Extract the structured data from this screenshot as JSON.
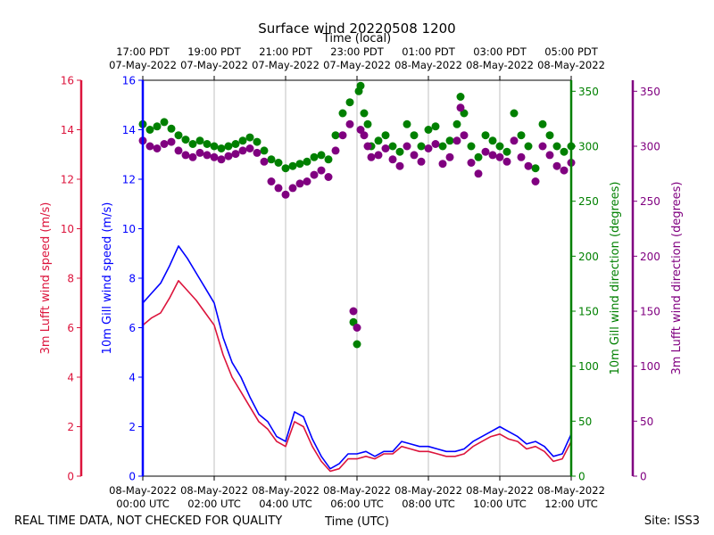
{
  "chart_data": {
    "type": "line",
    "title": "Surface wind 20220508 1200",
    "xlabel": "Time (UTC)",
    "xlabel_top": "Time (local)",
    "footer_left": "REAL TIME DATA, NOT CHECKED FOR QUALITY",
    "footer_right": "Site: ISS3",
    "x_range_hours": [
      0,
      12
    ],
    "x_ticks_bottom": [
      {
        "h": 0,
        "line1": "08-May-2022",
        "line2": "00:00 UTC"
      },
      {
        "h": 2,
        "line1": "08-May-2022",
        "line2": "02:00 UTC"
      },
      {
        "h": 4,
        "line1": "08-May-2022",
        "line2": "04:00 UTC"
      },
      {
        "h": 6,
        "line1": "08-May-2022",
        "line2": "06:00 UTC"
      },
      {
        "h": 8,
        "line1": "08-May-2022",
        "line2": "08:00 UTC"
      },
      {
        "h": 10,
        "line1": "08-May-2022",
        "line2": "10:00 UTC"
      },
      {
        "h": 12,
        "line1": "08-May-2022",
        "line2": "12:00 UTC"
      }
    ],
    "x_ticks_top": [
      {
        "h": 0,
        "line1": "17:00 PDT",
        "line2": "07-May-2022"
      },
      {
        "h": 2,
        "line1": "19:00 PDT",
        "line2": "07-May-2022"
      },
      {
        "h": 4,
        "line1": "21:00 PDT",
        "line2": "07-May-2022"
      },
      {
        "h": 6,
        "line1": "23:00 PDT",
        "line2": "07-May-2022"
      },
      {
        "h": 8,
        "line1": "01:00 PDT",
        "line2": "08-May-2022"
      },
      {
        "h": 10,
        "line1": "03:00 PDT",
        "line2": "08-May-2022"
      },
      {
        "h": 12,
        "line1": "05:00 PDT",
        "line2": "08-May-2022"
      }
    ],
    "axes": {
      "lufft_speed": {
        "label": "3m Lufft wind speed (m/s)",
        "color": "#dc143c",
        "ylim": [
          0,
          16
        ],
        "ticks": [
          "0",
          "2",
          "4",
          "6",
          "8",
          "10",
          "12",
          "14",
          "16"
        ]
      },
      "gill_speed": {
        "label": "10m Gill wind speed (m/s)",
        "color": "#0000ff",
        "ylim": [
          0,
          16
        ],
        "ticks": [
          "0",
          "2",
          "4",
          "6",
          "8",
          "10",
          "12",
          "14",
          "16"
        ]
      },
      "gill_dir": {
        "label": "10m Gill wind direction (degrees)",
        "color": "#008000",
        "ylim": [
          0,
          360
        ],
        "ticks": [
          "0",
          "50",
          "100",
          "150",
          "200",
          "250",
          "300",
          "350"
        ]
      },
      "lufft_dir": {
        "label": "3m Lufft wind direction (degrees)",
        "color": "#800080",
        "ylim": [
          0,
          360
        ],
        "ticks": [
          "0",
          "50",
          "100",
          "150",
          "200",
          "250",
          "300",
          "350"
        ]
      }
    },
    "series": [
      {
        "name": "10m Gill wind speed",
        "kind": "line",
        "axis": "gill_speed",
        "color": "#0000ff",
        "x": [
          0,
          0.25,
          0.5,
          0.75,
          1.0,
          1.25,
          1.5,
          1.75,
          2.0,
          2.25,
          2.5,
          2.75,
          3.0,
          3.25,
          3.5,
          3.75,
          4.0,
          4.25,
          4.5,
          4.75,
          5.0,
          5.25,
          5.5,
          5.75,
          6.0,
          6.25,
          6.5,
          6.75,
          7.0,
          7.25,
          7.5,
          7.75,
          8.0,
          8.25,
          8.5,
          8.75,
          9.0,
          9.25,
          9.5,
          9.75,
          10.0,
          10.25,
          10.5,
          10.75,
          11.0,
          11.25,
          11.5,
          11.75,
          12.0
        ],
        "values": [
          7.0,
          7.4,
          7.8,
          8.5,
          9.3,
          8.8,
          8.2,
          7.6,
          7.0,
          5.6,
          4.6,
          4.0,
          3.2,
          2.5,
          2.2,
          1.6,
          1.4,
          2.6,
          2.4,
          1.5,
          0.8,
          0.3,
          0.5,
          0.9,
          0.9,
          1.0,
          0.8,
          1.0,
          1.0,
          1.4,
          1.3,
          1.2,
          1.2,
          1.1,
          1.0,
          1.0,
          1.1,
          1.4,
          1.6,
          1.8,
          2.0,
          1.8,
          1.6,
          1.3,
          1.4,
          1.2,
          0.8,
          0.9,
          1.7
        ]
      },
      {
        "name": "3m Lufft wind speed",
        "kind": "line",
        "axis": "lufft_speed",
        "color": "#dc143c",
        "x": [
          0,
          0.25,
          0.5,
          0.75,
          1.0,
          1.25,
          1.5,
          1.75,
          2.0,
          2.25,
          2.5,
          2.75,
          3.0,
          3.25,
          3.5,
          3.75,
          4.0,
          4.25,
          4.5,
          4.75,
          5.0,
          5.25,
          5.5,
          5.75,
          6.0,
          6.25,
          6.5,
          6.75,
          7.0,
          7.25,
          7.5,
          7.75,
          8.0,
          8.25,
          8.5,
          8.75,
          9.0,
          9.25,
          9.5,
          9.75,
          10.0,
          10.25,
          10.5,
          10.75,
          11.0,
          11.25,
          11.5,
          11.75,
          12.0
        ],
        "values": [
          6.1,
          6.4,
          6.6,
          7.2,
          7.9,
          7.5,
          7.1,
          6.6,
          6.1,
          4.9,
          4.0,
          3.4,
          2.8,
          2.2,
          1.9,
          1.4,
          1.2,
          2.2,
          2.0,
          1.2,
          0.6,
          0.2,
          0.3,
          0.7,
          0.7,
          0.8,
          0.7,
          0.9,
          0.9,
          1.2,
          1.1,
          1.0,
          1.0,
          0.9,
          0.8,
          0.8,
          0.9,
          1.2,
          1.4,
          1.6,
          1.7,
          1.5,
          1.4,
          1.1,
          1.2,
          1.0,
          0.6,
          0.7,
          1.4
        ]
      },
      {
        "name": "10m Gill wind direction",
        "kind": "scatter",
        "axis": "gill_dir",
        "color": "#008000",
        "x": [
          0.0,
          0.2,
          0.4,
          0.6,
          0.8,
          1.0,
          1.2,
          1.4,
          1.6,
          1.8,
          2.0,
          2.2,
          2.4,
          2.6,
          2.8,
          3.0,
          3.2,
          3.4,
          3.6,
          3.8,
          4.0,
          4.2,
          4.4,
          4.6,
          4.8,
          5.0,
          5.2,
          5.4,
          5.6,
          5.8,
          5.9,
          6.0,
          6.05,
          6.1,
          6.2,
          6.3,
          6.4,
          6.6,
          6.8,
          7.0,
          7.2,
          7.4,
          7.6,
          7.8,
          8.0,
          8.2,
          8.4,
          8.6,
          8.8,
          8.9,
          9.0,
          9.2,
          9.4,
          9.6,
          9.8,
          10.0,
          10.2,
          10.4,
          10.6,
          10.8,
          11.0,
          11.2,
          11.4,
          11.6,
          11.8,
          12.0
        ],
        "values": [
          320,
          315,
          318,
          322,
          316,
          310,
          306,
          302,
          305,
          302,
          300,
          298,
          300,
          302,
          305,
          308,
          304,
          296,
          288,
          285,
          280,
          282,
          284,
          286,
          290,
          292,
          288,
          310,
          330,
          340,
          140,
          120,
          350,
          355,
          330,
          320,
          300,
          305,
          310,
          300,
          295,
          320,
          310,
          300,
          315,
          318,
          300,
          305,
          320,
          345,
          330,
          300,
          290,
          310,
          305,
          300,
          295,
          330,
          310,
          300,
          280,
          320,
          310,
          300,
          295,
          300
        ]
      },
      {
        "name": "3m Lufft wind direction",
        "kind": "scatter",
        "axis": "lufft_dir",
        "color": "#800080",
        "x": [
          0.0,
          0.2,
          0.4,
          0.6,
          0.8,
          1.0,
          1.2,
          1.4,
          1.6,
          1.8,
          2.0,
          2.2,
          2.4,
          2.6,
          2.8,
          3.0,
          3.2,
          3.4,
          3.6,
          3.8,
          4.0,
          4.2,
          4.4,
          4.6,
          4.8,
          5.0,
          5.2,
          5.4,
          5.6,
          5.8,
          5.9,
          6.0,
          6.1,
          6.2,
          6.3,
          6.4,
          6.6,
          6.8,
          7.0,
          7.2,
          7.4,
          7.6,
          7.8,
          8.0,
          8.2,
          8.4,
          8.6,
          8.8,
          8.9,
          9.0,
          9.2,
          9.4,
          9.6,
          9.8,
          10.0,
          10.2,
          10.4,
          10.6,
          10.8,
          11.0,
          11.2,
          11.4,
          11.6,
          11.8,
          12.0
        ],
        "values": [
          305,
          300,
          298,
          302,
          304,
          296,
          292,
          290,
          294,
          292,
          290,
          288,
          291,
          293,
          296,
          298,
          294,
          286,
          268,
          262,
          256,
          262,
          266,
          268,
          274,
          278,
          272,
          296,
          310,
          320,
          150,
          135,
          315,
          310,
          300,
          290,
          292,
          298,
          288,
          282,
          300,
          292,
          286,
          298,
          302,
          284,
          290,
          305,
          335,
          310,
          285,
          275,
          295,
          292,
          290,
          286,
          305,
          290,
          282,
          268,
          300,
          292,
          282,
          278,
          285
        ]
      }
    ]
  }
}
